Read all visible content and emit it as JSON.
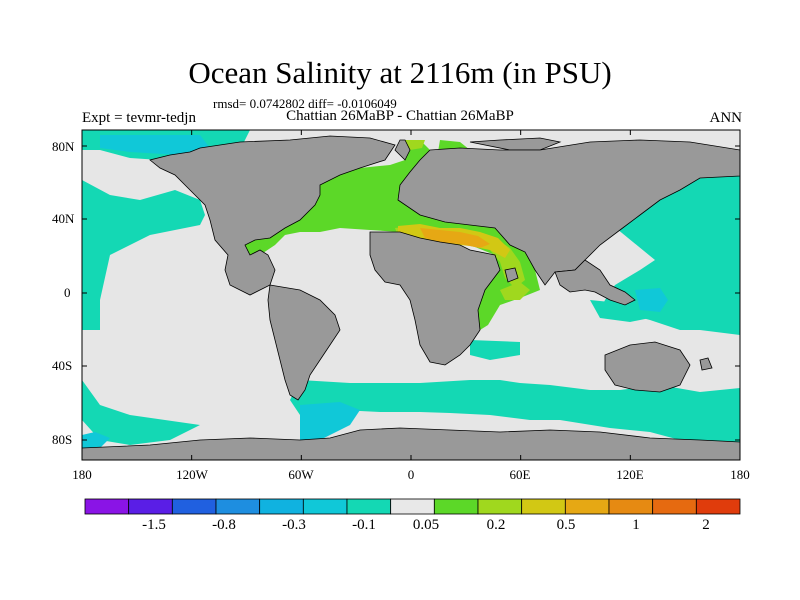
{
  "header": {
    "title": "Ocean Salinity at 2116m (in PSU)",
    "stats": "rmsd= 0.0742802 diff= -0.0106049",
    "expt": "Expt = tevmr-tedjn",
    "case": "Chattian  26MaBP - Chattian  26MaBP",
    "season": "ANN"
  },
  "map": {
    "lat_ticks": [
      "80N",
      "40N",
      "0",
      "40S",
      "80S"
    ],
    "lon_ticks": [
      "180",
      "120W",
      "60W",
      "0",
      "60E",
      "120E",
      "180"
    ],
    "land_color": "#999999",
    "background_color": "#e6e6e6"
  },
  "colorbar": {
    "colors": [
      "#8a14e6",
      "#5a1ee6",
      "#2060e0",
      "#1e8ee0",
      "#10b2e0",
      "#10c8d8",
      "#14d8b4",
      "#e8e8e8",
      "#5cd828",
      "#a0d81e",
      "#d2c814",
      "#e6a814",
      "#e68a12",
      "#e66a10",
      "#e03c0c"
    ],
    "labels": [
      "-1.5",
      "-0.8",
      "-0.3",
      "-0.1",
      "0.05",
      "0.2",
      "0.5",
      "1",
      "2"
    ]
  }
}
